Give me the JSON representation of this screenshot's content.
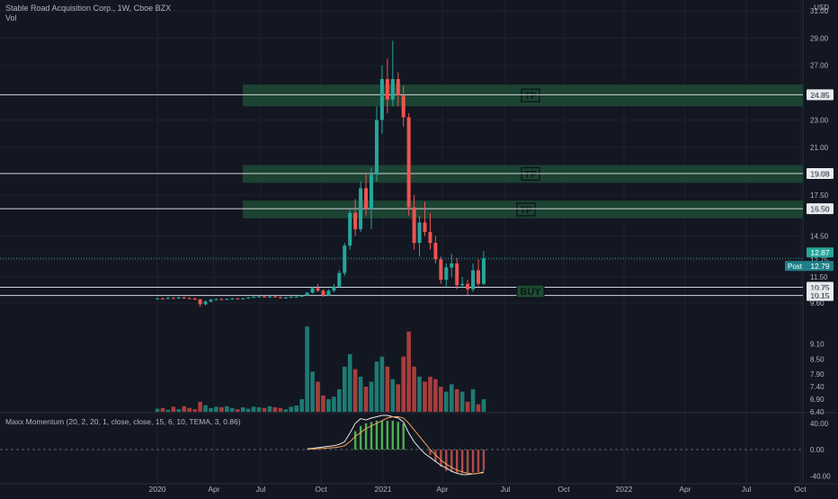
{
  "header": {
    "title": "Stable Road Acquisition Corp., 1W, Cboe BZX",
    "volume_label": "Vol",
    "currency": "USD"
  },
  "indicator": {
    "label": "Maxx Momentum (20, 2, 20, 1, close, close, 15, 6, 10, TEMA, 3, 0.86)"
  },
  "colors": {
    "background": "#131722",
    "up": "#26a69a",
    "down": "#ef5350",
    "zone": "#1f4a35",
    "line": "#d1d4dc"
  },
  "chart_data": [
    {
      "type": "candlestick",
      "title": "Stable Road Acquisition Corp., 1W, Cboe BZX",
      "ylim": [
        9.4,
        31.0
      ],
      "y_ticks": [
        "9.60",
        "10.15",
        "10.75",
        "11.50",
        "12.75",
        "14.50",
        "16.50",
        "17.50",
        "19.08",
        "21.00",
        "23.00",
        "24.85",
        "27.00",
        "29.00",
        "31.00"
      ],
      "x_ticks": [
        "2020",
        "Apr",
        "Jul",
        "Oct",
        "2021",
        "Apr",
        "Jul",
        "Oct",
        "2022",
        "Apr",
        "Jul",
        "Oct"
      ],
      "price_labels": {
        "last": "12.87",
        "post_label": "Post",
        "post": "12.79"
      },
      "levels": [
        {
          "value": 24.85,
          "label": "24.85"
        },
        {
          "value": 19.08,
          "label": "19.08"
        },
        {
          "value": 16.5,
          "label": "16.50"
        },
        {
          "value": 10.75,
          "label": "10.75"
        },
        {
          "value": 10.15,
          "label": "10.15"
        }
      ],
      "zones": [
        {
          "low": 24.0,
          "high": 25.6,
          "label": "TP"
        },
        {
          "low": 18.4,
          "high": 19.7,
          "label": "TP"
        },
        {
          "low": 15.8,
          "high": 17.1,
          "label": "TP"
        }
      ],
      "buy_label": "BUY",
      "candles": [
        {
          "o": 9.9,
          "h": 10.02,
          "l": 9.86,
          "c": 9.92
        },
        {
          "o": 9.92,
          "h": 10.0,
          "l": 9.85,
          "c": 9.9
        },
        {
          "o": 9.9,
          "h": 10.05,
          "l": 9.86,
          "c": 9.96
        },
        {
          "o": 9.96,
          "h": 10.06,
          "l": 9.9,
          "c": 9.94
        },
        {
          "o": 9.94,
          "h": 10.06,
          "l": 9.88,
          "c": 10.0
        },
        {
          "o": 10.0,
          "h": 10.08,
          "l": 9.9,
          "c": 9.95
        },
        {
          "o": 9.95,
          "h": 10.02,
          "l": 9.86,
          "c": 9.92
        },
        {
          "o": 9.92,
          "h": 10.0,
          "l": 9.8,
          "c": 9.86
        },
        {
          "o": 9.86,
          "h": 9.92,
          "l": 9.3,
          "c": 9.5
        },
        {
          "o": 9.5,
          "h": 9.8,
          "l": 9.42,
          "c": 9.7
        },
        {
          "o": 9.7,
          "h": 9.9,
          "l": 9.65,
          "c": 9.85
        },
        {
          "o": 9.85,
          "h": 9.95,
          "l": 9.78,
          "c": 9.88
        },
        {
          "o": 9.88,
          "h": 9.96,
          "l": 9.8,
          "c": 9.86
        },
        {
          "o": 9.86,
          "h": 9.94,
          "l": 9.8,
          "c": 9.9
        },
        {
          "o": 9.9,
          "h": 9.98,
          "l": 9.84,
          "c": 9.92
        },
        {
          "o": 9.92,
          "h": 9.98,
          "l": 9.86,
          "c": 9.9
        },
        {
          "o": 9.9,
          "h": 9.98,
          "l": 9.84,
          "c": 9.94
        },
        {
          "o": 9.94,
          "h": 10.04,
          "l": 9.9,
          "c": 10.0
        },
        {
          "o": 10.0,
          "h": 10.1,
          "l": 9.96,
          "c": 10.05
        },
        {
          "o": 10.05,
          "h": 10.14,
          "l": 10.0,
          "c": 10.08
        },
        {
          "o": 10.08,
          "h": 10.14,
          "l": 10.0,
          "c": 10.04
        },
        {
          "o": 10.04,
          "h": 10.1,
          "l": 9.96,
          "c": 10.08
        },
        {
          "o": 10.08,
          "h": 10.12,
          "l": 9.98,
          "c": 10.02
        },
        {
          "o": 10.02,
          "h": 10.08,
          "l": 9.92,
          "c": 9.96
        },
        {
          "o": 9.96,
          "h": 10.04,
          "l": 9.9,
          "c": 10.0
        },
        {
          "o": 10.0,
          "h": 10.08,
          "l": 9.96,
          "c": 10.04
        },
        {
          "o": 10.04,
          "h": 10.1,
          "l": 9.98,
          "c": 10.06
        },
        {
          "o": 10.06,
          "h": 10.2,
          "l": 10.02,
          "c": 10.15
        },
        {
          "o": 10.15,
          "h": 10.4,
          "l": 10.1,
          "c": 10.35
        },
        {
          "o": 10.35,
          "h": 10.8,
          "l": 10.3,
          "c": 10.7
        },
        {
          "o": 10.7,
          "h": 11.0,
          "l": 10.4,
          "c": 10.5
        },
        {
          "o": 10.5,
          "h": 10.6,
          "l": 10.05,
          "c": 10.15
        },
        {
          "o": 10.15,
          "h": 10.6,
          "l": 10.1,
          "c": 10.5
        },
        {
          "o": 10.5,
          "h": 11.0,
          "l": 10.4,
          "c": 10.8
        },
        {
          "o": 10.8,
          "h": 12.0,
          "l": 10.7,
          "c": 11.8
        },
        {
          "o": 11.8,
          "h": 14.0,
          "l": 11.6,
          "c": 13.8
        },
        {
          "o": 13.8,
          "h": 16.5,
          "l": 13.5,
          "c": 16.2
        },
        {
          "o": 16.2,
          "h": 17.2,
          "l": 14.5,
          "c": 15.0
        },
        {
          "o": 15.0,
          "h": 18.5,
          "l": 14.8,
          "c": 18.0
        },
        {
          "o": 18.0,
          "h": 19.0,
          "l": 16.0,
          "c": 16.5
        },
        {
          "o": 16.5,
          "h": 19.5,
          "l": 15.0,
          "c": 19.0
        },
        {
          "o": 19.0,
          "h": 24.0,
          "l": 18.5,
          "c": 23.0
        },
        {
          "o": 23.0,
          "h": 27.0,
          "l": 22.0,
          "c": 26.0
        },
        {
          "o": 26.0,
          "h": 27.5,
          "l": 23.5,
          "c": 24.5
        },
        {
          "o": 24.5,
          "h": 28.8,
          "l": 24.0,
          "c": 26.0
        },
        {
          "o": 26.0,
          "h": 26.5,
          "l": 24.0,
          "c": 24.8
        },
        {
          "o": 24.8,
          "h": 25.5,
          "l": 22.5,
          "c": 23.2
        },
        {
          "o": 23.2,
          "h": 23.5,
          "l": 16.0,
          "c": 16.6
        },
        {
          "o": 16.6,
          "h": 17.5,
          "l": 13.5,
          "c": 14.0
        },
        {
          "o": 14.0,
          "h": 16.0,
          "l": 13.0,
          "c": 15.5
        },
        {
          "o": 15.5,
          "h": 17.0,
          "l": 14.5,
          "c": 14.8
        },
        {
          "o": 14.8,
          "h": 16.2,
          "l": 13.5,
          "c": 14.0
        },
        {
          "o": 14.0,
          "h": 14.5,
          "l": 12.5,
          "c": 12.8
        },
        {
          "o": 12.8,
          "h": 13.0,
          "l": 11.0,
          "c": 11.3
        },
        {
          "o": 11.3,
          "h": 12.5,
          "l": 10.8,
          "c": 12.2
        },
        {
          "o": 12.2,
          "h": 13.2,
          "l": 11.5,
          "c": 12.5
        },
        {
          "o": 12.5,
          "h": 12.9,
          "l": 10.6,
          "c": 10.9
        },
        {
          "o": 10.9,
          "h": 11.5,
          "l": 10.7,
          "c": 11.0
        },
        {
          "o": 11.0,
          "h": 11.3,
          "l": 10.2,
          "c": 10.6
        },
        {
          "o": 10.6,
          "h": 12.5,
          "l": 10.4,
          "c": 12.0
        },
        {
          "o": 12.0,
          "h": 12.8,
          "l": 10.8,
          "c": 11.0
        },
        {
          "o": 11.0,
          "h": 13.4,
          "l": 10.9,
          "c": 12.87
        }
      ]
    },
    {
      "type": "bar",
      "title": "Vol",
      "ylim": [
        6.4,
        10.2
      ],
      "y_ticks": [
        "6.40",
        "6.90",
        "7.40",
        "7.90",
        "8.50",
        "9.10"
      ],
      "values": [
        6.52,
        6.55,
        6.48,
        6.6,
        6.5,
        6.62,
        6.55,
        6.5,
        6.8,
        6.66,
        6.55,
        6.6,
        6.58,
        6.62,
        6.55,
        6.5,
        6.58,
        6.52,
        6.6,
        6.58,
        6.55,
        6.62,
        6.58,
        6.55,
        6.5,
        6.6,
        6.65,
        6.9,
        9.8,
        8.0,
        7.6,
        7.05,
        6.9,
        7.0,
        7.3,
        8.2,
        8.7,
        8.1,
        7.8,
        7.4,
        7.6,
        8.4,
        8.6,
        8.2,
        7.7,
        7.5,
        8.6,
        9.6,
        8.2,
        7.8,
        7.6,
        7.8,
        7.7,
        7.4,
        7.2,
        7.5,
        7.3,
        7.2,
        6.8,
        7.3,
        6.7,
        6.9
      ]
    },
    {
      "type": "line",
      "title": "Maxx Momentum (20, 2, 20, 1, close, close, 15, 6, 10, TEMA, 3, 0.86)",
      "ylim": [
        -45,
        52
      ],
      "y_ticks": [
        "40.00",
        "0.00",
        "-40.00"
      ],
      "series": [
        {
          "values": [
            0,
            0,
            0,
            0,
            0,
            0,
            0,
            0,
            0,
            0,
            0,
            0,
            0,
            0,
            0,
            0,
            0,
            0,
            0,
            0,
            0,
            0,
            0,
            0,
            0,
            0,
            0,
            0,
            1,
            2,
            3,
            4,
            5,
            6,
            8,
            12,
            25,
            40,
            47,
            45,
            48,
            50,
            52,
            52,
            50,
            48,
            42,
            25,
            12,
            2,
            -6,
            -12,
            -18,
            -24,
            -28,
            -33,
            -36,
            -38,
            -38,
            -37,
            -36,
            -34
          ]
        },
        {
          "values": [
            0,
            0,
            0,
            0,
            0,
            0,
            0,
            0,
            0,
            0,
            0,
            0,
            0,
            0,
            0,
            0,
            0,
            0,
            0,
            0,
            0,
            0,
            0,
            0,
            0,
            0,
            0,
            0,
            0.5,
            1,
            1.5,
            2,
            2.5,
            3,
            4,
            6,
            12,
            20,
            26,
            32,
            36,
            40,
            44,
            48,
            50,
            50,
            48,
            40,
            30,
            20,
            10,
            0,
            -8,
            -16,
            -22,
            -27,
            -31,
            -34,
            -36,
            -37,
            -36,
            -35
          ]
        }
      ],
      "histogram": [
        0,
        0,
        0,
        0,
        0,
        0,
        0,
        0,
        0,
        0,
        0,
        0,
        0,
        0,
        0,
        0,
        0,
        0,
        0,
        0,
        0,
        0,
        0,
        0,
        0,
        0,
        0,
        0,
        0,
        0,
        0,
        0,
        0,
        0,
        0,
        0,
        0,
        28,
        36,
        40,
        42,
        44,
        44,
        44,
        44,
        42,
        40,
        0,
        0,
        0,
        0,
        -8,
        -18,
        -26,
        -32,
        -34,
        -35,
        -36,
        -36,
        -35,
        -34,
        -32
      ]
    }
  ]
}
